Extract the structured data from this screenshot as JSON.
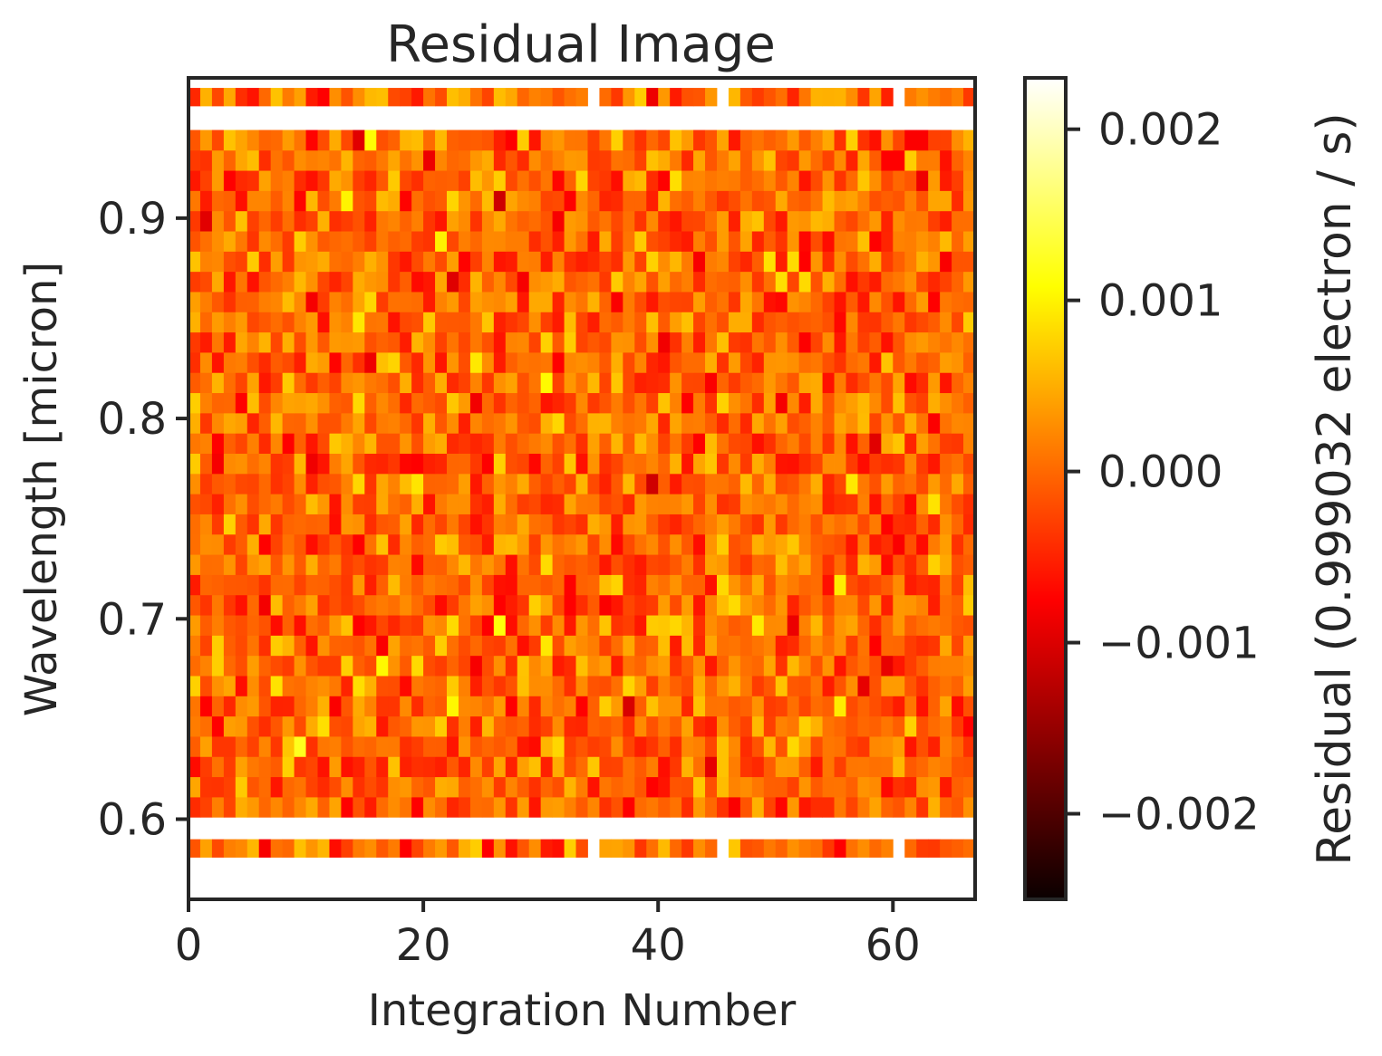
{
  "chart_data": {
    "type": "heatmap",
    "title": "Residual Image",
    "xlabel": "Integration Number",
    "ylabel": "Wavelength [micron]",
    "colorbar_label": "Residual (0.999032 electron / s)",
    "colormap": "hot",
    "xlim": [
      0,
      67
    ],
    "ylim": [
      0.56,
      0.97
    ],
    "x_ticks": [
      0,
      20,
      40,
      60
    ],
    "x_tick_labels": [
      "0",
      "20",
      "40",
      "60"
    ],
    "y_ticks": [
      0.6,
      0.7,
      0.8,
      0.9
    ],
    "y_tick_labels": [
      "0.6",
      "0.7",
      "0.8",
      "0.9"
    ],
    "colorbar_range": [
      -0.0025,
      0.0023
    ],
    "colorbar_ticks": [
      -0.002,
      -0.001,
      0.0,
      0.001,
      0.002
    ],
    "colorbar_tick_labels": [
      "−0.002",
      "−0.001",
      "0.000",
      "0.001",
      "0.002"
    ],
    "n_integrations": 67,
    "wavelength_rows": {
      "top_band": [
        0.956,
        0.965
      ],
      "main_block": [
        0.601,
        0.944
      ],
      "main_rows": 34,
      "bottom_band": [
        0.581,
        0.59
      ]
    },
    "masked_columns_in_bands": [
      34,
      45,
      60
    ],
    "values_note": "residual scatter around 0 with std ~0.0006, extremes near -0.0024 and +0.0022"
  }
}
